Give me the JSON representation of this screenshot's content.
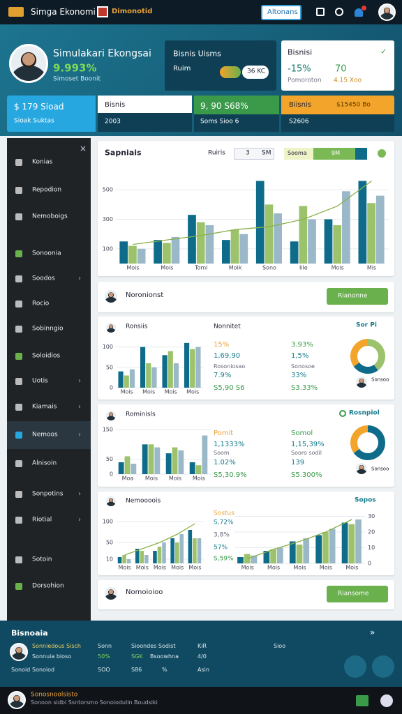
{
  "topbar": {
    "brand": "Simga Ekonomi",
    "badge": "Dimonotid",
    "button": "Altonans"
  },
  "profile": {
    "title": "Simulakari Ekongsai",
    "value": "9.993%",
    "subtitle": "Simoset Boonit"
  },
  "mid_card": {
    "title": "Bisnis Uisms",
    "label": "Ruim",
    "pill": "36 KC"
  },
  "right_card": {
    "title": "Bisnisi",
    "change": "-15%",
    "value": "70",
    "label": "Pomoroton",
    "sub": "4.15 Xoo"
  },
  "stats": [
    {
      "value": "$ 179 Sioad",
      "label": "Sioak Suktas"
    },
    {
      "value": "Bisnis",
      "label": "2003"
    },
    {
      "value": "9, 90 S68%",
      "label": "Soms Sioo 6"
    },
    {
      "value": "Biisnis",
      "extra": "$15450 Bo",
      "label": "S2606"
    }
  ],
  "sidebar": [
    "Konias",
    "Repodion",
    "Nemoboigs",
    "Sonoonia",
    "Soodos",
    "Rocio",
    "Sobinngio",
    "Soloidios",
    "Uotis",
    "Kiamais",
    "Nemoos",
    "Alnisoin",
    "Sonpotins",
    "Riotial",
    "Sotoin",
    "Dorsohion"
  ],
  "main_panel": {
    "title": "Sapniais",
    "control_label": "Ruiris",
    "range_a": "3",
    "range_b": "SM",
    "filter": "Sooma",
    "filter_value": "9M",
    "chart": {
      "type": "bar",
      "categories": [
        "Mois",
        "Mois",
        "Toml",
        "Moik",
        "Sono",
        "Iile",
        "Mois",
        "Mis"
      ],
      "series": [
        {
          "color": "#0f6b8a",
          "values": [
            150,
            160,
            330,
            160,
            560,
            150,
            300,
            560
          ]
        },
        {
          "color": "#9cc26b",
          "values": [
            120,
            140,
            280,
            230,
            400,
            390,
            260,
            410
          ]
        },
        {
          "color": "#9ab8c8",
          "values": [
            100,
            180,
            260,
            200,
            340,
            300,
            490,
            460
          ]
        },
        {
          "type": "line",
          "color": "#8ab04a",
          "values": [
            130,
            160,
            190,
            230,
            250,
            300,
            390,
            560
          ]
        }
      ],
      "ylim": [
        0,
        600
      ],
      "yticks": [
        100,
        300,
        500
      ]
    }
  },
  "person_row_1": {
    "name": "Noronionst",
    "button": "Rianonne"
  },
  "panel_a": {
    "title": "Ronsiis",
    "title2": "Nonnitet",
    "badge": "Sor Pi",
    "chart": {
      "type": "bar",
      "categories": [
        "Mois",
        "Mois",
        "Mois",
        "Mois"
      ],
      "series": [
        {
          "color": "#0f6b8a",
          "values": [
            40,
            100,
            80,
            110
          ]
        },
        {
          "color": "#9cc26b",
          "values": [
            30,
            60,
            90,
            95
          ]
        },
        {
          "color": "#9ab8c8",
          "values": [
            45,
            50,
            60,
            100
          ]
        }
      ],
      "ylim": [
        0,
        120
      ],
      "yticks": [
        0,
        50,
        100
      ]
    },
    "col1": [
      "15%",
      "1,69,90",
      "Rosoniosao",
      "7.9%",
      "S5,90 S6"
    ],
    "col2": [
      "3.93%",
      "1,5%",
      "Sonosoe",
      "33%",
      "S3.33%"
    ],
    "donut": {
      "type": "pie",
      "values": [
        40,
        25,
        35
      ],
      "colors": [
        "#9cc26b",
        "#0f6b8a",
        "#f3a42a"
      ]
    },
    "donut_label": "Sonsoo"
  },
  "panel_b": {
    "title": "Rominisls",
    "badge": "Rosnpiol",
    "chart": {
      "type": "bar",
      "categories": [
        "Moa",
        "Mois",
        "Mois",
        "Mois"
      ],
      "series": [
        {
          "color": "#0f6b8a",
          "values": [
            40,
            100,
            70,
            40
          ]
        },
        {
          "color": "#9cc26b",
          "values": [
            60,
            100,
            90,
            30
          ]
        },
        {
          "color": "#9ab8c8",
          "values": [
            35,
            90,
            80,
            130
          ]
        }
      ],
      "ylim": [
        0,
        150
      ],
      "yticks": [
        0,
        50,
        150
      ]
    },
    "col1": [
      "Pomit",
      "1,1333%",
      "Soom",
      "1.02%",
      "S5,30.9%"
    ],
    "col2": [
      "Somol",
      "1,15,39%",
      "Sooro sodil",
      "139",
      "S5.300%"
    ],
    "donut": {
      "type": "pie",
      "values": [
        65,
        35
      ],
      "colors": [
        "#0f6b8a",
        "#f3a42a"
      ]
    },
    "donut_label": "Sonsoo"
  },
  "panel_c": {
    "title": "Nemoooois",
    "badge": "Sopos",
    "texts": [
      "Sostus",
      "S,72%",
      "3,8%",
      "57%",
      "S,59%"
    ],
    "chart": {
      "type": "bar",
      "categories": [
        "Mois",
        "Mois",
        "Mois",
        "Mois",
        "Mois"
      ],
      "series": [
        {
          "color": "#0f6b8a",
          "values": [
            15,
            35,
            30,
            60,
            80
          ]
        },
        {
          "color": "#9cc26b",
          "values": [
            20,
            30,
            40,
            50,
            60
          ]
        },
        {
          "color": "#9ab8c8",
          "values": [
            10,
            20,
            50,
            70,
            60
          ]
        },
        {
          "type": "line",
          "color": "#8ab04a",
          "values": [
            20,
            35,
            50,
            70,
            95
          ]
        }
      ],
      "ylim": [
        0,
        120
      ],
      "yticks": [
        10,
        50,
        100
      ]
    },
    "chart2": {
      "type": "bar",
      "axis_side": "right",
      "categories": [
        "Mois",
        "Mois",
        "Mois",
        "Mois",
        "Mois"
      ],
      "series": [
        {
          "color": "#0f6b8a",
          "values": [
            4,
            8,
            14,
            18,
            26
          ]
        },
        {
          "color": "#9cc26b",
          "values": [
            6,
            9,
            12,
            20,
            25
          ]
        },
        {
          "color": "#9ab8c8",
          "values": [
            5,
            10,
            16,
            22,
            28
          ]
        },
        {
          "type": "line",
          "color": "#8ab04a",
          "values": [
            3,
            9,
            14,
            20,
            28
          ]
        }
      ],
      "ylim": [
        0,
        32
      ],
      "yticks": [
        0,
        10,
        20,
        30
      ]
    }
  },
  "person_row_2": {
    "name": "Nomoioioo",
    "button": "Riansome"
  },
  "bottom": {
    "title": "Bisnoaia",
    "nav": "»",
    "rows": [
      [
        "Sonniedous Sisch",
        "Sonn",
        "Sioondes Sodist",
        "KiR",
        "Sioo"
      ],
      [
        "Sonnuia bioso",
        "50%",
        "SGK",
        "Bsoowhna",
        "4/0"
      ],
      [
        "Sonoid",
        "Sonoiod",
        "SOO",
        "S86",
        "%",
        "Asin"
      ]
    ]
  },
  "footer": {
    "name": "Sonosnoolsisto",
    "text": "Sonoon sidbi Ssntorsmo Sonoiodulin Boudsiki"
  }
}
